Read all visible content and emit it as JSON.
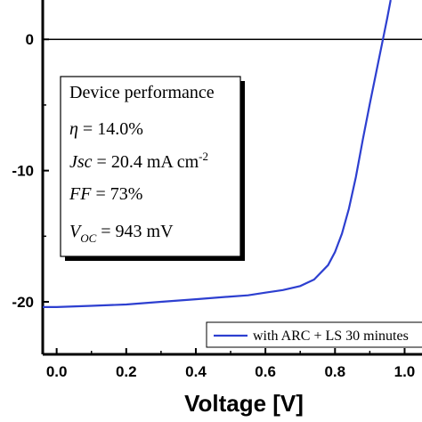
{
  "chart_data": {
    "type": "line",
    "xlabel": "Voltage [V]",
    "ylabel": "",
    "xlim": [
      -0.04,
      1.05
    ],
    "ylim": [
      -24,
      3
    ],
    "x_ticks": [
      "0.0",
      "0.2",
      "0.4",
      "0.6",
      "0.8",
      "1.0"
    ],
    "x_tick_values": [
      0.0,
      0.2,
      0.4,
      0.6,
      0.8,
      1.0
    ],
    "y_ticks": [
      "0",
      "-10",
      "-20"
    ],
    "y_tick_values": [
      0,
      -10,
      -20
    ],
    "zero_line": true,
    "legend_placement": "bottom-right",
    "colors": {
      "series": "#2d3fd0",
      "axis": "#000000"
    },
    "series": [
      {
        "name": "with ARC + LS 30 minutes",
        "x": [
          -0.04,
          0.0,
          0.1,
          0.2,
          0.3,
          0.4,
          0.5,
          0.55,
          0.6,
          0.65,
          0.7,
          0.74,
          0.78,
          0.8,
          0.82,
          0.84,
          0.86,
          0.88,
          0.9,
          0.92,
          0.94,
          0.95,
          0.96
        ],
        "y": [
          -20.4,
          -20.4,
          -20.3,
          -20.2,
          -20.0,
          -19.8,
          -19.6,
          -19.5,
          -19.3,
          -19.1,
          -18.8,
          -18.3,
          -17.2,
          -16.2,
          -14.8,
          -12.9,
          -10.5,
          -7.6,
          -4.9,
          -2.3,
          0.3,
          1.6,
          3.0
        ]
      }
    ],
    "annotation": {
      "title": "Device performance",
      "lines": [
        {
          "label": "η",
          "value": " = 14.0%"
        },
        {
          "label": "Jsc",
          "value": " = 20.4 mA cm",
          "superscript": "-2"
        },
        {
          "label": "FF",
          "value": " = 73%"
        },
        {
          "label": "V",
          "subscript": "OC",
          "value": " = 943 mV"
        }
      ]
    }
  }
}
